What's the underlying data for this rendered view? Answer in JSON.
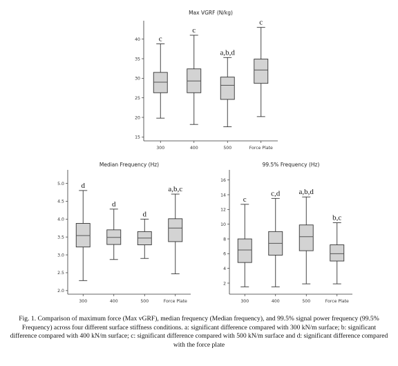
{
  "chart_data": [
    {
      "id": "vgrf",
      "type": "box",
      "title": "Max VGRF (N/kg)",
      "categories": [
        "300",
        "400",
        "500",
        "Force Plate"
      ],
      "ylim": [
        14,
        44
      ],
      "yticks": [
        15,
        20,
        25,
        30,
        35,
        40
      ],
      "boxes": [
        {
          "min": 19.8,
          "q1": 26.3,
          "median": 29.0,
          "q3": 31.5,
          "max": 38.8
        },
        {
          "min": 18.2,
          "q1": 26.3,
          "median": 29.3,
          "q3": 32.4,
          "max": 41.0
        },
        {
          "min": 17.6,
          "q1": 24.6,
          "median": 28.2,
          "q3": 30.3,
          "max": 35.3
        },
        {
          "min": 20.2,
          "q1": 28.7,
          "median": 32.1,
          "q3": 34.9,
          "max": 43.0
        }
      ],
      "significance": [
        "c",
        "c",
        "a,b,d",
        "c"
      ]
    },
    {
      "id": "median",
      "type": "box",
      "title": "Median Frequency (Hz)",
      "categories": [
        "300",
        "400",
        "500",
        "Force Plate"
      ],
      "ylim": [
        1.9,
        5.3
      ],
      "yticks": [
        2.0,
        2.5,
        3.0,
        3.5,
        4.0,
        4.5,
        5.0
      ],
      "ytick_labels": [
        "2.0",
        "2.5",
        "3.0",
        "3.5",
        "4.0",
        "4.5",
        "5.0"
      ],
      "boxes": [
        {
          "min": 2.28,
          "q1": 3.22,
          "median": 3.54,
          "q3": 3.88,
          "max": 4.8
        },
        {
          "min": 2.87,
          "q1": 3.29,
          "median": 3.49,
          "q3": 3.7,
          "max": 4.28
        },
        {
          "min": 2.9,
          "q1": 3.28,
          "median": 3.47,
          "q3": 3.65,
          "max": 4.0
        },
        {
          "min": 2.47,
          "q1": 3.37,
          "median": 3.75,
          "q3": 4.01,
          "max": 4.7
        }
      ],
      "significance": [
        "d",
        "d",
        "d",
        "a,b,c"
      ]
    },
    {
      "id": "p995",
      "type": "box",
      "title": "99.5% Frequency (Hz)",
      "categories": [
        "300",
        "400",
        "500",
        "Force Plate"
      ],
      "ylim": [
        0.5,
        17
      ],
      "yticks": [
        2,
        4,
        6,
        8,
        10,
        12,
        14,
        16
      ],
      "boxes": [
        {
          "min": 1.5,
          "q1": 4.8,
          "median": 6.5,
          "q3": 8.0,
          "max": 12.7
        },
        {
          "min": 1.5,
          "q1": 5.8,
          "median": 7.4,
          "q3": 9.0,
          "max": 13.5
        },
        {
          "min": 1.9,
          "q1": 6.4,
          "median": 8.3,
          "q3": 9.9,
          "max": 13.7
        },
        {
          "min": 1.9,
          "q1": 5.0,
          "median": 6.0,
          "q3": 7.2,
          "max": 10.2
        }
      ],
      "significance": [
        "c",
        "c,d",
        "a,b,d",
        "b,c"
      ]
    }
  ],
  "caption": "Fig. 1. Comparison of maximum force (Max vGRF), median frequency (Median frequency), and 99.5% signal power frequency (99.5% Frequency) across four different surface stiffness conditions. a: significant difference compared with 300 kN/m surface; b: significant difference compared with 400 kN/m surface; c: significant difference compared with 500 kN/m surface and d: significant difference compared with the force plate",
  "colors": {
    "box_fill": "#d3d3d3",
    "stroke": "#333333",
    "median": "#555555"
  }
}
